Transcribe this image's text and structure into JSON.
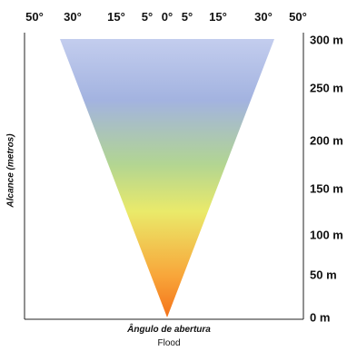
{
  "beam_diagram": {
    "angle_labels": [
      "50°",
      "30°",
      "15°",
      "5°",
      "0°",
      "5°",
      "15°",
      "30°",
      "50°"
    ],
    "range_labels": [
      "300 m",
      "250 m",
      "200 m",
      "150 m",
      "100 m",
      "50 m",
      "0 m"
    ],
    "y_axis_label": "Alcance (metros)",
    "x_axis_label": "Ângulo de abertura",
    "subtitle": "Flood",
    "gradient_colors": {
      "top": "#c3cdee",
      "upper": "#a3b3e0",
      "middle_green": "#b2d592",
      "yellow": "#eaea6a",
      "orange": "#f8a63a",
      "tip": "#f4721a"
    }
  }
}
